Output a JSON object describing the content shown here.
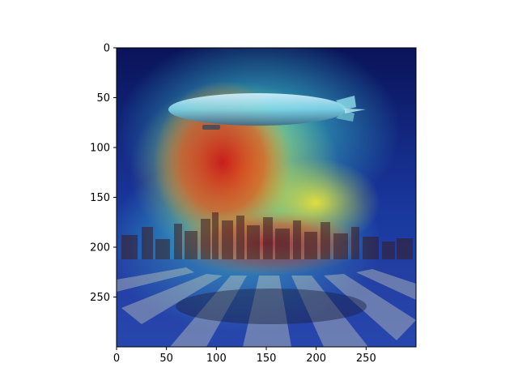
{
  "image_plot": {
    "x_ticks": [
      "0",
      "50",
      "100",
      "150",
      "200",
      "250"
    ],
    "y_ticks": [
      "0",
      "50",
      "100",
      "150",
      "200",
      "250"
    ],
    "x_range": [
      0,
      300
    ],
    "y_range": [
      0,
      300
    ],
    "y_axis": "inverted (0 at top)",
    "overlay": "heatmap, jet colormap, semi-transparent over photo of airship above city skyline and runway",
    "colors": {
      "axis": "#000000",
      "low": "#0a1a8c",
      "mid": "#3fd6d6",
      "high": "#d42a1c"
    }
  }
}
